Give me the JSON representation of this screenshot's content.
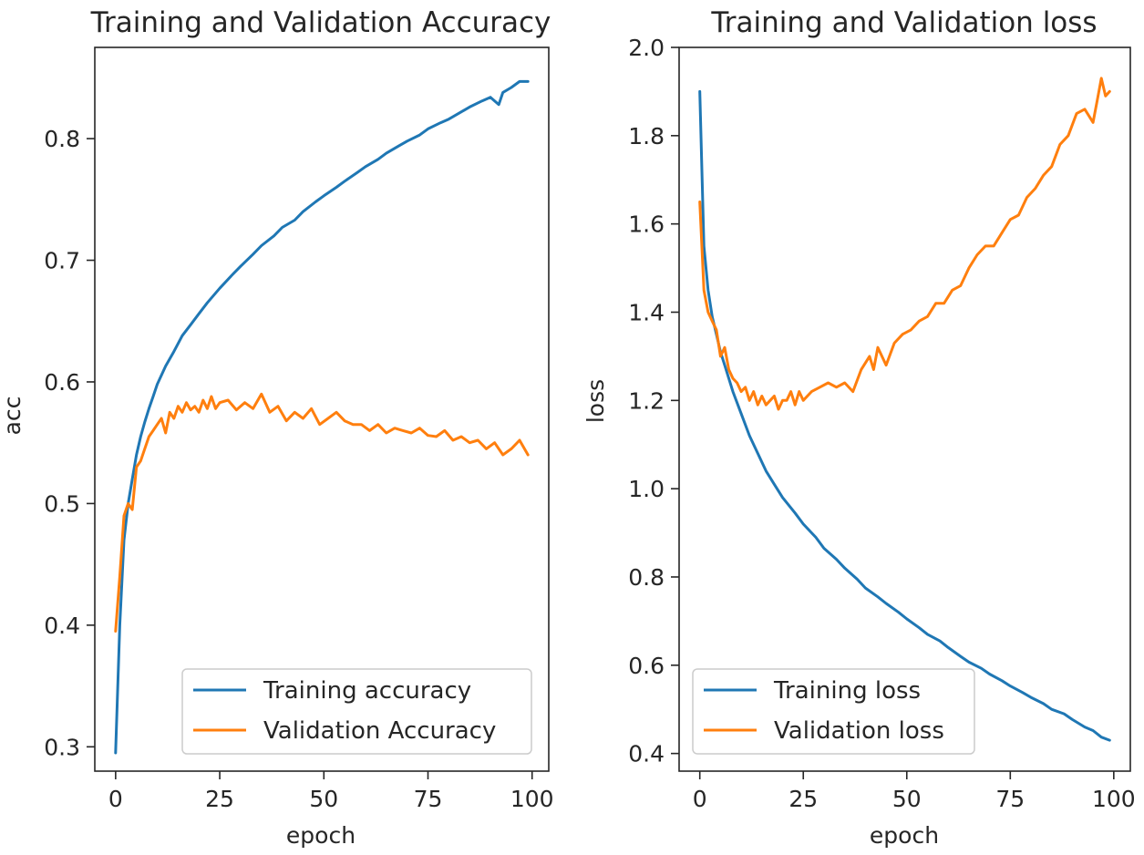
{
  "chart_data": [
    {
      "type": "line",
      "title": "Training and Validation Accuracy",
      "xlabel": "epoch",
      "ylabel": "acc",
      "xlim": [
        -5,
        104
      ],
      "ylim": [
        0.28,
        0.875
      ],
      "xticks": [
        0,
        25,
        50,
        75,
        100
      ],
      "xtick_labels": [
        "0",
        "25",
        "50",
        "75",
        "100"
      ],
      "yticks": [
        0.3,
        0.4,
        0.5,
        0.6,
        0.7,
        0.8
      ],
      "ytick_labels": [
        "0.3",
        "0.4",
        "0.5",
        "0.6",
        "0.7",
        "0.8"
      ],
      "legend_position": "lower-right",
      "series": [
        {
          "name": "Training accuracy",
          "color": "#1f77b4",
          "x": [
            0,
            1,
            2,
            3,
            4,
            5,
            6,
            7,
            8,
            9,
            10,
            12,
            14,
            16,
            18,
            20,
            22,
            25,
            28,
            30,
            33,
            35,
            38,
            40,
            43,
            45,
            48,
            50,
            53,
            55,
            58,
            60,
            63,
            65,
            68,
            70,
            73,
            75,
            78,
            80,
            83,
            85,
            88,
            90,
            92,
            93,
            95,
            97,
            99
          ],
          "values": [
            0.295,
            0.4,
            0.47,
            0.5,
            0.52,
            0.54,
            0.555,
            0.567,
            0.578,
            0.588,
            0.598,
            0.613,
            0.625,
            0.638,
            0.647,
            0.656,
            0.665,
            0.677,
            0.688,
            0.695,
            0.705,
            0.712,
            0.72,
            0.727,
            0.733,
            0.74,
            0.748,
            0.753,
            0.76,
            0.765,
            0.772,
            0.777,
            0.783,
            0.788,
            0.794,
            0.798,
            0.803,
            0.808,
            0.813,
            0.816,
            0.822,
            0.826,
            0.831,
            0.834,
            0.828,
            0.838,
            0.842,
            0.847,
            0.847
          ]
        },
        {
          "name": "Validation Accuracy",
          "color": "#ff7f0e",
          "x": [
            0,
            1,
            2,
            3,
            4,
            5,
            6,
            7,
            8,
            9,
            10,
            11,
            12,
            13,
            14,
            15,
            16,
            17,
            18,
            19,
            20,
            21,
            22,
            23,
            24,
            25,
            27,
            29,
            31,
            33,
            35,
            37,
            39,
            41,
            43,
            45,
            47,
            49,
            51,
            53,
            55,
            57,
            59,
            61,
            63,
            65,
            67,
            69,
            71,
            73,
            75,
            77,
            79,
            81,
            83,
            85,
            87,
            89,
            91,
            93,
            95,
            97,
            99
          ],
          "values": [
            0.395,
            0.44,
            0.49,
            0.5,
            0.495,
            0.53,
            0.535,
            0.545,
            0.555,
            0.56,
            0.565,
            0.57,
            0.558,
            0.575,
            0.57,
            0.58,
            0.575,
            0.583,
            0.577,
            0.58,
            0.575,
            0.585,
            0.578,
            0.588,
            0.578,
            0.583,
            0.585,
            0.577,
            0.583,
            0.578,
            0.59,
            0.575,
            0.58,
            0.568,
            0.575,
            0.57,
            0.578,
            0.565,
            0.57,
            0.575,
            0.568,
            0.565,
            0.565,
            0.56,
            0.565,
            0.558,
            0.562,
            0.56,
            0.558,
            0.562,
            0.556,
            0.555,
            0.56,
            0.552,
            0.555,
            0.55,
            0.552,
            0.545,
            0.55,
            0.54,
            0.545,
            0.552,
            0.54
          ]
        }
      ]
    },
    {
      "type": "line",
      "title": "Training and Validation loss",
      "xlabel": "epoch",
      "ylabel": "loss",
      "xlim": [
        -5,
        104
      ],
      "ylim": [
        0.36,
        2.0
      ],
      "xticks": [
        0,
        25,
        50,
        75,
        100
      ],
      "xtick_labels": [
        "0",
        "25",
        "50",
        "75",
        "100"
      ],
      "yticks": [
        0.4,
        0.6,
        0.8,
        1.0,
        1.2,
        1.4,
        1.6,
        1.8,
        2.0
      ],
      "ytick_labels": [
        "0.4",
        "0.6",
        "0.8",
        "1.0",
        "1.2",
        "1.4",
        "1.6",
        "1.8",
        "2.0"
      ],
      "legend_position": "lower-left",
      "series": [
        {
          "name": "Training loss",
          "color": "#1f77b4",
          "x": [
            0,
            1,
            2,
            3,
            4,
            5,
            6,
            7,
            8,
            10,
            12,
            14,
            16,
            18,
            20,
            23,
            25,
            28,
            30,
            33,
            35,
            38,
            40,
            43,
            45,
            48,
            50,
            53,
            55,
            58,
            60,
            63,
            65,
            68,
            70,
            73,
            75,
            78,
            80,
            83,
            85,
            88,
            90,
            93,
            95,
            97,
            99
          ],
          "values": [
            1.9,
            1.55,
            1.45,
            1.39,
            1.35,
            1.31,
            1.28,
            1.25,
            1.22,
            1.17,
            1.12,
            1.08,
            1.04,
            1.01,
            0.98,
            0.945,
            0.92,
            0.89,
            0.865,
            0.84,
            0.82,
            0.795,
            0.775,
            0.755,
            0.74,
            0.72,
            0.705,
            0.685,
            0.67,
            0.655,
            0.64,
            0.62,
            0.607,
            0.593,
            0.58,
            0.565,
            0.553,
            0.538,
            0.527,
            0.513,
            0.5,
            0.49,
            0.477,
            0.46,
            0.452,
            0.437,
            0.43
          ]
        },
        {
          "name": "Validation loss",
          "color": "#ff7f0e",
          "x": [
            0,
            1,
            2,
            3,
            4,
            5,
            6,
            7,
            8,
            9,
            10,
            11,
            12,
            13,
            14,
            15,
            16,
            17,
            18,
            19,
            20,
            21,
            22,
            23,
            24,
            25,
            27,
            29,
            31,
            33,
            35,
            37,
            39,
            41,
            42,
            43,
            45,
            47,
            49,
            51,
            53,
            55,
            57,
            59,
            61,
            63,
            65,
            67,
            69,
            71,
            73,
            75,
            77,
            79,
            81,
            83,
            85,
            87,
            89,
            91,
            93,
            95,
            96,
            97,
            98,
            99
          ],
          "values": [
            1.65,
            1.45,
            1.4,
            1.38,
            1.36,
            1.3,
            1.32,
            1.27,
            1.25,
            1.24,
            1.22,
            1.23,
            1.2,
            1.22,
            1.19,
            1.21,
            1.19,
            1.2,
            1.21,
            1.18,
            1.2,
            1.2,
            1.22,
            1.19,
            1.22,
            1.2,
            1.22,
            1.23,
            1.24,
            1.23,
            1.24,
            1.22,
            1.27,
            1.3,
            1.27,
            1.32,
            1.28,
            1.33,
            1.35,
            1.36,
            1.38,
            1.39,
            1.42,
            1.42,
            1.45,
            1.46,
            1.5,
            1.53,
            1.55,
            1.55,
            1.58,
            1.61,
            1.62,
            1.66,
            1.68,
            1.71,
            1.73,
            1.78,
            1.8,
            1.85,
            1.86,
            1.83,
            1.88,
            1.93,
            1.89,
            1.9
          ]
        }
      ]
    }
  ]
}
